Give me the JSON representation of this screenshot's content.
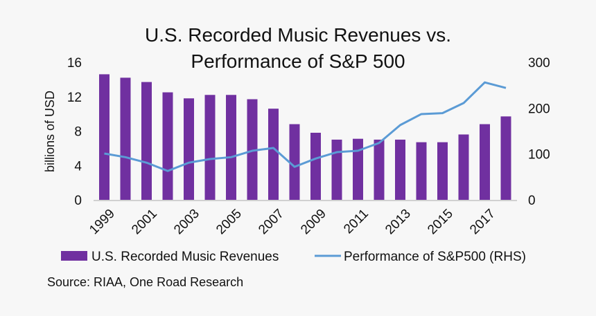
{
  "chart_data": {
    "type": "bar+line",
    "title": [
      "U.S. Recorded Music Revenues vs.",
      "Performance of S&P 500"
    ],
    "ylabel": "billions of USD",
    "ylim": [
      0,
      16
    ],
    "y_ticks": [
      "0",
      "4",
      "8",
      "12",
      "16"
    ],
    "y2lim": [
      0,
      300
    ],
    "y2_ticks": [
      "0",
      "100",
      "200",
      "300"
    ],
    "categories": [
      "1999",
      "2000",
      "2001",
      "2002",
      "2003",
      "2004",
      "2005",
      "2006",
      "2007",
      "2008",
      "2009",
      "2010",
      "2011",
      "2012",
      "2013",
      "2014",
      "2015",
      "2016",
      "2017",
      "2018"
    ],
    "x_tick_labels": [
      "1999",
      "2001",
      "2003",
      "2005",
      "2007",
      "2009",
      "2011",
      "2013",
      "2015",
      "2017"
    ],
    "series": [
      {
        "name": "U.S. Recorded Music Revenues",
        "type": "bar",
        "axis": "left",
        "color": "#7030a0",
        "values": [
          14.6,
          14.2,
          13.7,
          12.5,
          11.8,
          12.2,
          12.2,
          11.7,
          10.6,
          8.8,
          7.8,
          7.0,
          7.1,
          7.0,
          7.0,
          6.7,
          6.7,
          7.6,
          8.8,
          9.7
        ]
      },
      {
        "name": "Performance of S&P500 (RHS)",
        "type": "line",
        "axis": "right",
        "color": "#5b9bd5",
        "values": [
          101,
          93,
          81,
          63,
          81,
          89,
          93,
          107,
          113,
          72,
          90,
          104,
          107,
          124,
          163,
          187,
          189,
          211,
          256,
          244
        ]
      }
    ],
    "legend_position": "bottom",
    "source": "Source: RIAA, One Road Research"
  }
}
